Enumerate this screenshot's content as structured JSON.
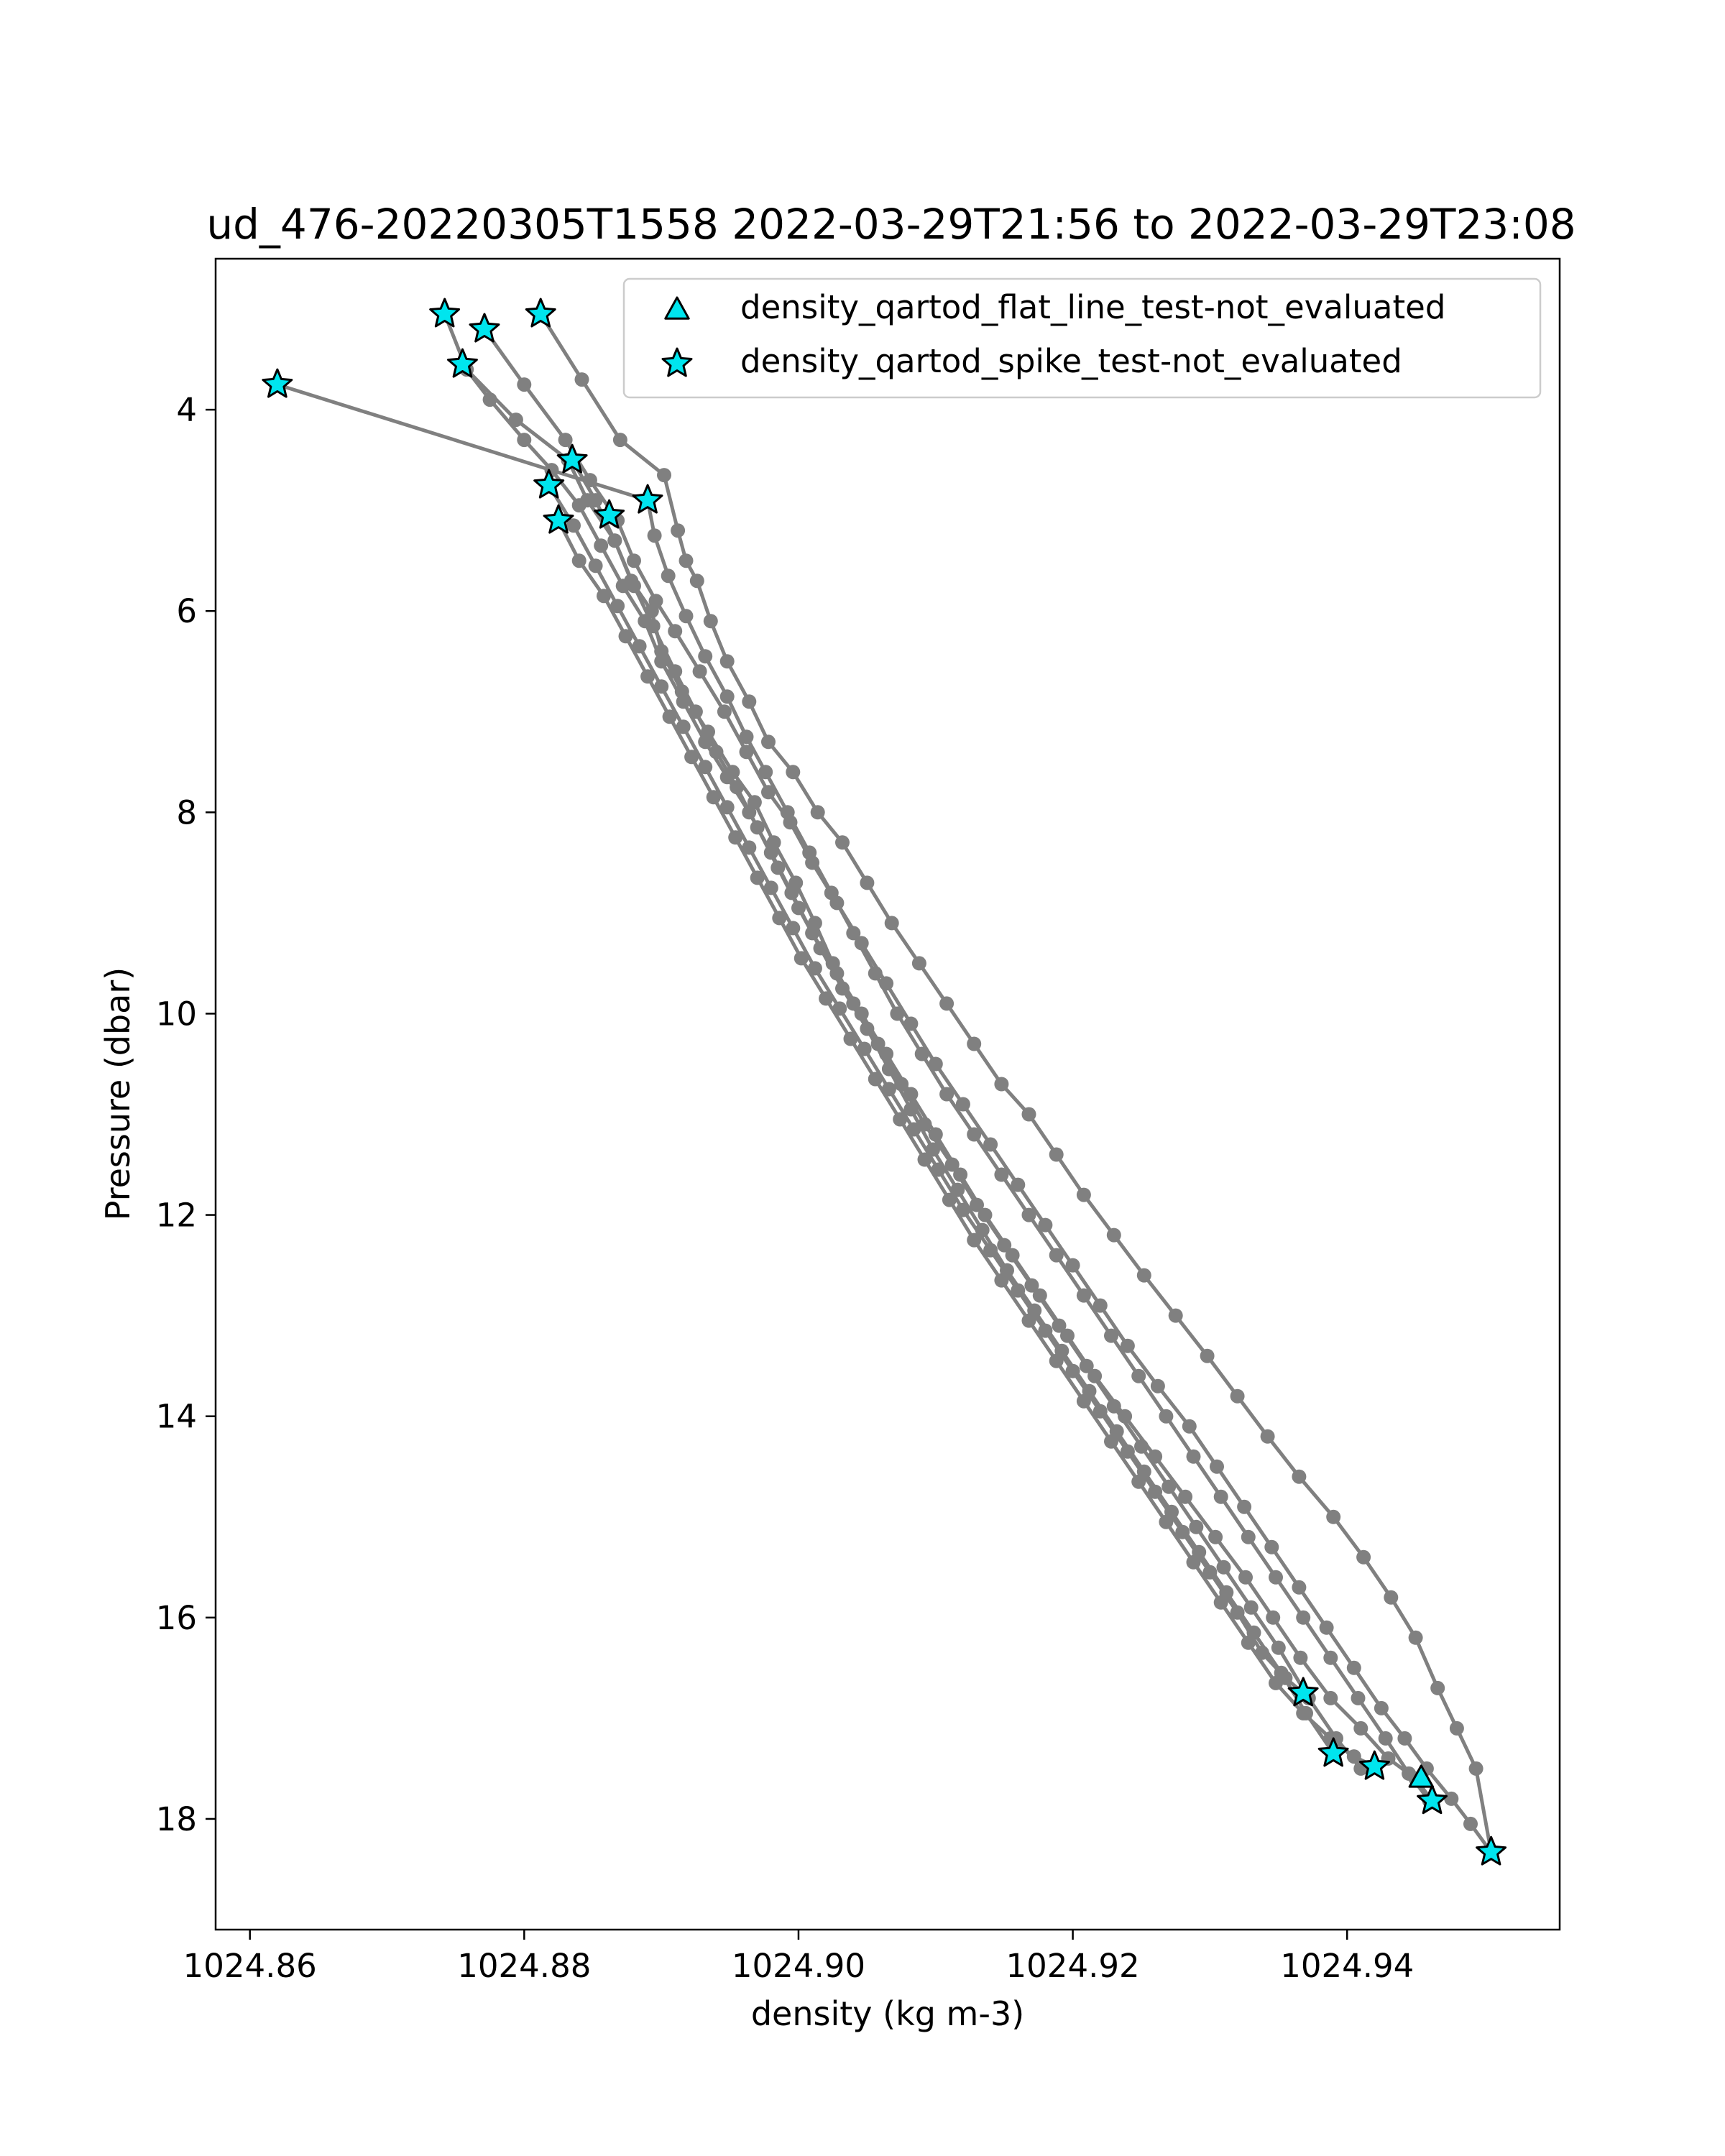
{
  "chart_data": {
    "type": "scatter",
    "title": "ud_476-20220305T1558 2022-03-29T21:56 to 2022-03-29T23:08",
    "xlabel": "density (kg m-3)",
    "ylabel": "Pressure (dbar)",
    "xlim": [
      1024.8575,
      1024.9555
    ],
    "ylim": [
      19.1,
      2.5
    ],
    "y_inverted": true,
    "grid": false,
    "xticks": [
      1024.86,
      1024.88,
      1024.9,
      1024.92,
      1024.94
    ],
    "xtick_labels": [
      "1024.86",
      "1024.88",
      "1024.90",
      "1024.92",
      "1024.94"
    ],
    "yticks": [
      4,
      6,
      8,
      10,
      12,
      14,
      16,
      18
    ],
    "ytick_labels": [
      "4",
      "6",
      "8",
      "10",
      "12",
      "14",
      "16",
      "18"
    ],
    "legend_position": "upper right",
    "colors": {
      "profile_line": "#808080",
      "marker_fill": "#00e5ee",
      "marker_edge": "#000000"
    },
    "legend": [
      {
        "label": "density_qartod_flat_line_test-not_evaluated",
        "marker": "triangle"
      },
      {
        "label": "density_qartod_spike_test-not_evaluated",
        "marker": "star"
      }
    ],
    "profiles": [
      {
        "x": [
          1024.8742,
          1024.8758,
          1024.8794,
          1024.8832,
          1024.8846,
          1024.8866,
          1024.8878,
          1024.8893,
          1024.89,
          1024.8915,
          1024.8934,
          1024.8952,
          1024.8968,
          1024.8982,
          1024.8998,
          1024.9012,
          1024.9025,
          1024.904,
          1024.9058,
          1024.9075,
          1024.9092,
          1024.9112,
          1024.913,
          1024.915,
          1024.917,
          1024.919,
          1024.921,
          1024.923,
          1024.925,
          1024.927,
          1024.929,
          1024.931,
          1024.933,
          1024.935,
          1024.9372,
          1024.9392,
          1024.941
        ],
        "y": [
          3.05,
          3.6,
          4.1,
          4.5,
          4.9,
          5.3,
          5.7,
          6.0,
          6.4,
          6.8,
          7.2,
          7.6,
          7.9,
          8.3,
          8.7,
          9.1,
          9.5,
          9.9,
          10.3,
          10.7,
          11.1,
          11.5,
          11.9,
          12.3,
          12.7,
          13.1,
          13.5,
          13.9,
          14.3,
          14.7,
          15.1,
          15.5,
          15.9,
          16.3,
          16.8,
          17.2,
          17.5
        ]
      },
      {
        "x": [
          1024.8771,
          1024.88,
          1024.883,
          1024.8848,
          1024.8868,
          1024.888,
          1024.8896,
          1024.891,
          1024.8928,
          1024.8946,
          1024.8962,
          1024.8978,
          1024.8994,
          1024.901,
          1024.9028,
          1024.9046,
          1024.9064,
          1024.9082,
          1024.91,
          1024.912,
          1024.914,
          1024.916,
          1024.918,
          1024.92,
          1024.922,
          1024.924,
          1024.9262,
          1024.9285,
          1024.9305,
          1024.9325,
          1024.9345,
          1024.9365,
          1024.9385,
          1024.9405,
          1024.9425,
          1024.9442,
          1024.9458,
          1024.9476,
          1024.949,
          1024.9505
        ],
        "y": [
          3.2,
          3.75,
          4.3,
          4.7,
          5.1,
          5.5,
          5.9,
          6.2,
          6.6,
          7.0,
          7.4,
          7.8,
          8.1,
          8.5,
          8.9,
          9.3,
          9.7,
          10.1,
          10.5,
          10.9,
          11.3,
          11.7,
          12.1,
          12.5,
          12.9,
          13.3,
          13.7,
          14.1,
          14.5,
          14.9,
          15.3,
          15.7,
          16.1,
          16.5,
          16.9,
          17.2,
          17.5,
          17.8,
          18.05,
          18.33
        ]
      },
      {
        "x": [
          1024.8812,
          1024.8842,
          1024.887,
          1024.8902,
          1024.8912,
          1024.8918,
          1024.8926,
          1024.8936,
          1024.8948,
          1024.8964,
          1024.8978,
          1024.8996,
          1024.9014,
          1024.9032,
          1024.905,
          1024.9068,
          1024.9088,
          1024.9108,
          1024.9128,
          1024.9148,
          1024.9168,
          1024.9188,
          1024.9208,
          1024.923,
          1024.9252,
          1024.9275,
          1024.9298,
          1024.932,
          1024.9342,
          1024.9365,
          1024.939,
          1024.9412,
          1024.9432,
          1024.945,
          1024.9466,
          1024.948,
          1024.9494,
          1024.9505
        ],
        "y": [
          3.05,
          3.7,
          4.3,
          4.65,
          5.2,
          5.5,
          5.7,
          6.1,
          6.5,
          6.9,
          7.3,
          7.6,
          8.0,
          8.3,
          8.7,
          9.1,
          9.5,
          9.9,
          10.3,
          10.7,
          11.0,
          11.4,
          11.8,
          12.2,
          12.6,
          13.0,
          13.4,
          13.8,
          14.2,
          14.6,
          15.0,
          15.4,
          15.8,
          16.2,
          16.7,
          17.1,
          17.5,
          18.33
        ]
      },
      {
        "x": [
          1024.8755,
          1024.8775,
          1024.88,
          1024.882,
          1024.884,
          1024.8856,
          1024.8872,
          1024.8888,
          1024.89,
          1024.8916,
          1024.8932,
          1024.8948,
          1024.8964,
          1024.898,
          1024.8995,
          1024.901,
          1024.9028,
          1024.9046,
          1024.9064,
          1024.9082,
          1024.91,
          1024.9118,
          1024.9136,
          1024.9156,
          1024.9176,
          1024.9196,
          1024.9216,
          1024.9238,
          1024.926,
          1024.9282,
          1024.9304,
          1024.9326,
          1024.9346,
          1024.9366,
          1024.9388,
          1024.941,
          1024.943,
          1024.945,
          1024.9462
        ],
        "y": [
          3.55,
          3.9,
          4.3,
          4.6,
          4.95,
          5.35,
          5.75,
          6.1,
          6.5,
          6.9,
          7.3,
          7.65,
          8.0,
          8.4,
          8.8,
          9.2,
          9.6,
          10.0,
          10.4,
          10.8,
          11.2,
          11.6,
          12.0,
          12.4,
          12.8,
          13.2,
          13.6,
          14.0,
          14.4,
          14.8,
          15.2,
          15.6,
          16.0,
          16.4,
          16.8,
          17.1,
          17.4,
          17.6,
          17.82
        ]
      },
      {
        "x": [
          1024.862,
          1024.889,
          1024.8895,
          1024.8905,
          1024.8918,
          1024.8932,
          1024.8948,
          1024.8962,
          1024.8976,
          1024.8992,
          1024.9008,
          1024.9024,
          1024.904,
          1024.9056,
          1024.9072,
          1024.909,
          1024.9108,
          1024.9128,
          1024.9148,
          1024.9168,
          1024.9188,
          1024.9208,
          1024.9228,
          1024.9248,
          1024.9268,
          1024.9288,
          1024.9308,
          1024.9328,
          1024.9348,
          1024.9368,
          1024.9388,
          1024.9408,
          1024.9428,
          1024.9445,
          1024.946
        ],
        "y": [
          3.75,
          4.9,
          5.25,
          5.65,
          6.05,
          6.45,
          6.85,
          7.25,
          7.6,
          8.0,
          8.4,
          8.8,
          9.2,
          9.6,
          10.0,
          10.4,
          10.8,
          11.2,
          11.6,
          12.0,
          12.4,
          12.8,
          13.2,
          13.6,
          14.0,
          14.4,
          14.8,
          15.2,
          15.6,
          16.0,
          16.4,
          16.8,
          17.2,
          17.55,
          17.82
        ]
      },
      {
        "x": [
          1024.8835,
          1024.8852,
          1024.8866,
          1024.888,
          1024.8894,
          1024.891,
          1024.8925,
          1024.894,
          1024.8955,
          1024.897,
          1024.8985,
          1024.9,
          1024.9016,
          1024.9032,
          1024.905,
          1024.9066,
          1024.9082,
          1024.9098,
          1024.9116,
          1024.9134,
          1024.9152,
          1024.9172,
          1024.9192,
          1024.9212,
          1024.9232,
          1024.9252,
          1024.9272,
          1024.9292,
          1024.9312,
          1024.9332,
          1024.9352,
          1024.937,
          1024.939
        ],
        "y": [
          4.5,
          4.9,
          5.3,
          5.75,
          6.15,
          6.6,
          7.0,
          7.4,
          7.75,
          8.15,
          8.55,
          8.95,
          9.35,
          9.75,
          10.15,
          10.55,
          10.95,
          11.35,
          11.75,
          12.15,
          12.55,
          12.95,
          13.35,
          13.75,
          14.15,
          14.55,
          14.95,
          15.35,
          15.75,
          16.15,
          16.55,
          16.95,
          17.35
        ]
      },
      {
        "x": [
          1024.8818,
          1024.8836,
          1024.8852,
          1024.8868,
          1024.8884,
          1024.89,
          1024.8916,
          1024.8932,
          1024.8948,
          1024.8964,
          1024.898,
          1024.8996,
          1024.9012,
          1024.903,
          1024.9048,
          1024.9066,
          1024.9084,
          1024.9102,
          1024.912,
          1024.914,
          1024.916,
          1024.918,
          1024.92,
          1024.922,
          1024.924,
          1024.926,
          1024.928,
          1024.93,
          1024.932,
          1024.9338,
          1024.9355,
          1024.9368
        ],
        "y": [
          4.75,
          5.15,
          5.55,
          5.95,
          6.35,
          6.75,
          7.15,
          7.55,
          7.95,
          8.35,
          8.75,
          9.15,
          9.55,
          9.95,
          10.35,
          10.75,
          11.15,
          11.55,
          11.95,
          12.35,
          12.75,
          13.15,
          13.55,
          13.95,
          14.35,
          14.75,
          15.15,
          15.55,
          15.95,
          16.35,
          16.6,
          16.75
        ]
      },
      {
        "x": [
          1024.8825,
          1024.884,
          1024.8858,
          1024.8874,
          1024.889,
          1024.8906,
          1024.8922,
          1024.8938,
          1024.8954,
          1024.897,
          1024.8986,
          1024.9002,
          1024.902,
          1024.9038,
          1024.9056,
          1024.9074,
          1024.9092,
          1024.911,
          1024.9128,
          1024.9148,
          1024.9168,
          1024.9188,
          1024.9208,
          1024.9228,
          1024.9248,
          1024.9268,
          1024.9288,
          1024.9308,
          1024.9328,
          1024.9348,
          1024.9368,
          1024.9388,
          1024.9405,
          1024.942
        ],
        "y": [
          5.1,
          5.5,
          5.85,
          6.25,
          6.65,
          7.05,
          7.45,
          7.85,
          8.25,
          8.65,
          9.05,
          9.45,
          9.85,
          10.25,
          10.65,
          11.05,
          11.45,
          11.85,
          12.25,
          12.65,
          13.05,
          13.45,
          13.85,
          14.25,
          14.65,
          15.05,
          15.45,
          15.85,
          16.25,
          16.65,
          16.95,
          17.2,
          17.38,
          17.48
        ]
      }
    ],
    "flat_line_test_points": [
      {
        "x": 1024.9454,
        "y": 17.6
      }
    ],
    "spike_test_points": [
      {
        "x": 1024.8742,
        "y": 3.05
      },
      {
        "x": 1024.8771,
        "y": 3.2
      },
      {
        "x": 1024.8812,
        "y": 3.05
      },
      {
        "x": 1024.8755,
        "y": 3.55
      },
      {
        "x": 1024.862,
        "y": 3.75
      },
      {
        "x": 1024.8835,
        "y": 4.5
      },
      {
        "x": 1024.8818,
        "y": 4.75
      },
      {
        "x": 1024.889,
        "y": 4.9
      },
      {
        "x": 1024.8862,
        "y": 5.05
      },
      {
        "x": 1024.8825,
        "y": 5.1
      },
      {
        "x": 1024.9368,
        "y": 16.75
      },
      {
        "x": 1024.939,
        "y": 17.35
      },
      {
        "x": 1024.942,
        "y": 17.48
      },
      {
        "x": 1024.9462,
        "y": 17.82
      },
      {
        "x": 1024.9505,
        "y": 18.33
      }
    ]
  }
}
